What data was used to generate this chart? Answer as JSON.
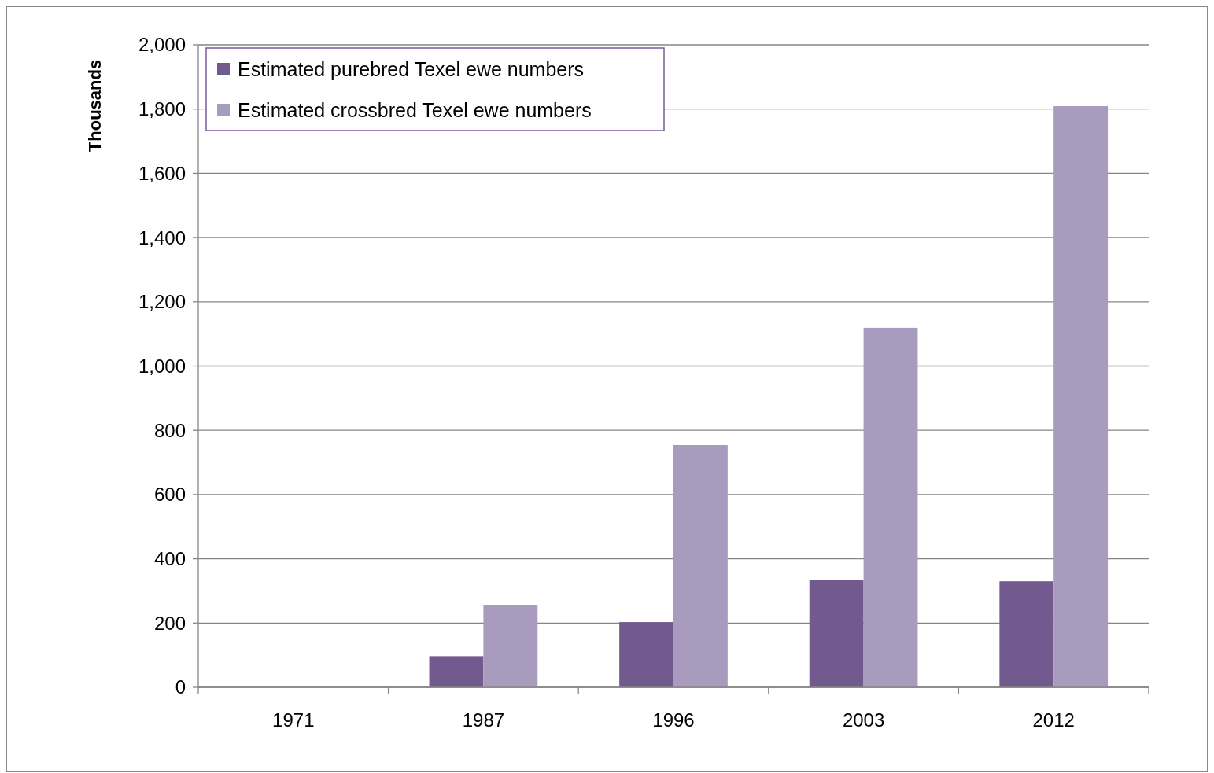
{
  "chart_data": {
    "type": "bar",
    "ylabel": "Thousands",
    "categories": [
      "1971",
      "1987",
      "1996",
      "2003",
      "2012"
    ],
    "series": [
      {
        "name": "Estimated purebred Texel ewe numbers",
        "color": "#725a8f",
        "values": [
          null,
          97,
          203,
          333,
          330
        ]
      },
      {
        "name": "Estimated crossbred Texel ewe numbers",
        "color": "#a99bbe",
        "values": [
          null,
          257,
          754,
          1119,
          1809
        ]
      }
    ],
    "ylim": [
      0,
      2000
    ],
    "yticks": [
      {
        "value": 0,
        "label": "0"
      },
      {
        "value": 200,
        "label": "200"
      },
      {
        "value": 400,
        "label": "400"
      },
      {
        "value": 600,
        "label": "600"
      },
      {
        "value": 800,
        "label": "800"
      },
      {
        "value": 1000,
        "label": "1,000"
      },
      {
        "value": 1200,
        "label": "1,200"
      },
      {
        "value": 1400,
        "label": "1,400"
      },
      {
        "value": 1600,
        "label": "1,600"
      },
      {
        "value": 1800,
        "label": "1,800"
      },
      {
        "value": 2000,
        "label": "2,000"
      }
    ],
    "grid": "y",
    "legend": "top left"
  }
}
